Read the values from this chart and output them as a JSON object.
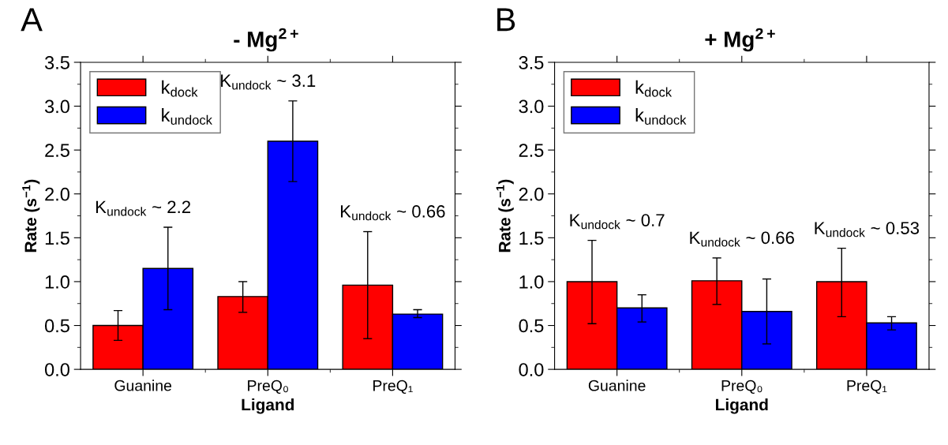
{
  "chart_data": [
    {
      "type": "bar",
      "title": "- Mg$^{2+}$",
      "xlabel": "Ligand",
      "ylabel": "Rate (s$^{−1}$)",
      "categories": [
        "Guanine",
        "PreQ₀",
        "PreQ₁"
      ],
      "series": [
        {
          "name": "k$_{dock}$",
          "color": "#ff0000",
          "values": [
            0.5,
            0.83,
            0.96
          ],
          "errors": [
            [
              0.33,
              0.67
            ],
            [
              0.65,
              1.0
            ],
            [
              0.35,
              1.57
            ]
          ]
        },
        {
          "name": "k$_{undock}$",
          "color": "#0000ff",
          "values": [
            1.15,
            2.6,
            0.63
          ],
          "errors": [
            [
              0.68,
              1.62
            ],
            [
              2.14,
              3.06
            ],
            [
              0.59,
              0.68
            ]
          ]
        }
      ],
      "ylim": [
        0,
        3.5
      ],
      "yticks": [
        {
          "value": 0,
          "label": "0.0"
        },
        {
          "value": 0.5,
          "label": "0.5"
        },
        {
          "value": 1,
          "label": "1.0"
        },
        {
          "value": 1.5,
          "label": "1.5"
        },
        {
          "value": 2,
          "label": "2.0"
        },
        {
          "value": 2.5,
          "label": "2.5"
        },
        {
          "value": 3,
          "label": "3.0"
        },
        {
          "value": 3.5,
          "label": "3.5"
        }
      ],
      "legend": "top left",
      "grid": false,
      "annotations": [
        "A",
        "K$_{undock}$ ~ 2.2",
        "K$_{undock}$ ~ 3.1",
        "K$_{undock}$ ~ 0.66"
      ]
    },
    {
      "type": "bar",
      "title": "+ Mg$^{2+}$",
      "xlabel": "Ligand",
      "ylabel": "Rate (s$^{−1}$)",
      "categories": [
        "Guanine",
        "PreQ₀",
        "PreQ₁"
      ],
      "series": [
        {
          "name": "k$_{dock}$",
          "color": "#ff0000",
          "values": [
            1.0,
            1.01,
            1.0
          ],
          "errors": [
            [
              0.52,
              1.47
            ],
            [
              0.74,
              1.27
            ],
            [
              0.6,
              1.38
            ]
          ]
        },
        {
          "name": "k$_{undock}$",
          "color": "#0000ff",
          "values": [
            0.7,
            0.66,
            0.53
          ],
          "errors": [
            [
              0.54,
              0.85
            ],
            [
              0.29,
              1.03
            ],
            [
              0.45,
              0.6
            ]
          ]
        }
      ],
      "ylim": [
        0,
        3.5
      ],
      "yticks": [
        {
          "value": 0,
          "label": "0.0"
        },
        {
          "value": 0.5,
          "label": "0.5"
        },
        {
          "value": 1,
          "label": "1.0"
        },
        {
          "value": 1.5,
          "label": "1.5"
        },
        {
          "value": 2,
          "label": "2.0"
        },
        {
          "value": 2.5,
          "label": "2.5"
        },
        {
          "value": 3,
          "label": "3.0"
        },
        {
          "value": 3.5,
          "label": "3.5"
        }
      ],
      "legend": "top left",
      "grid": false,
      "annotations": [
        "B",
        "K$_{undock}$ ~ 0.7",
        "K$_{undock}$ ~ 0.66",
        "K$_{undock}$ ~ 0.53"
      ]
    }
  ]
}
